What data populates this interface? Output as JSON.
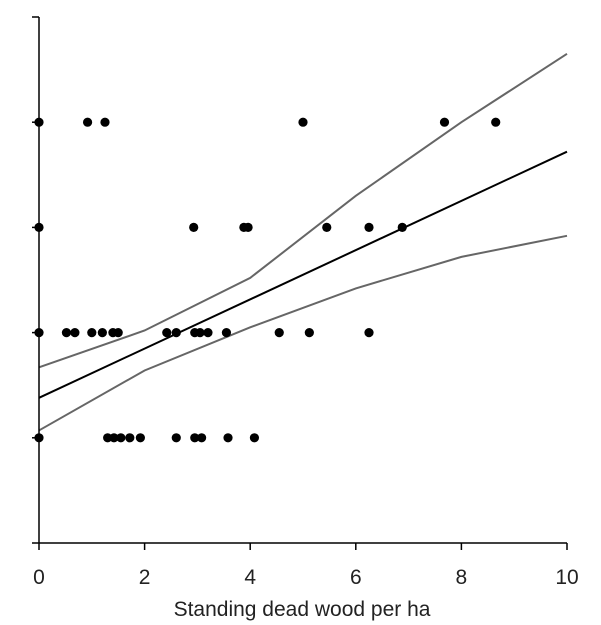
{
  "chart_data": {
    "type": "scatter",
    "title": "",
    "xlabel": "Standing dead wood per ha",
    "ylabel": "",
    "xlim": [
      0,
      10
    ],
    "ylim": [
      0,
      5
    ],
    "xticks": [
      0,
      2,
      4,
      6,
      8,
      10
    ],
    "xtick_labels": [
      "0",
      "2",
      "4",
      "6",
      "8",
      "10"
    ],
    "yticks": [
      0,
      1,
      2,
      3,
      4,
      5
    ],
    "ytick_labels": [
      "",
      "",
      "",
      "",
      "",
      ""
    ],
    "grid": false,
    "colors": {
      "points": "#000000",
      "fit_line": "#000000",
      "confidence_band": "#666666",
      "axes": "#000000"
    },
    "points": [
      {
        "x": 0.0,
        "y": 4
      },
      {
        "x": 0.92,
        "y": 4
      },
      {
        "x": 1.25,
        "y": 4
      },
      {
        "x": 5.0,
        "y": 4
      },
      {
        "x": 7.68,
        "y": 4
      },
      {
        "x": 8.65,
        "y": 4
      },
      {
        "x": 0.0,
        "y": 3
      },
      {
        "x": 2.93,
        "y": 3
      },
      {
        "x": 3.88,
        "y": 3
      },
      {
        "x": 3.96,
        "y": 3
      },
      {
        "x": 5.45,
        "y": 3
      },
      {
        "x": 6.25,
        "y": 3
      },
      {
        "x": 6.88,
        "y": 3
      },
      {
        "x": 0.0,
        "y": 2
      },
      {
        "x": 0.52,
        "y": 2
      },
      {
        "x": 0.68,
        "y": 2
      },
      {
        "x": 1.0,
        "y": 2
      },
      {
        "x": 1.2,
        "y": 2
      },
      {
        "x": 1.4,
        "y": 2
      },
      {
        "x": 1.5,
        "y": 2
      },
      {
        "x": 2.42,
        "y": 2
      },
      {
        "x": 2.6,
        "y": 2
      },
      {
        "x": 2.95,
        "y": 2
      },
      {
        "x": 3.05,
        "y": 2
      },
      {
        "x": 3.2,
        "y": 2
      },
      {
        "x": 3.55,
        "y": 2
      },
      {
        "x": 4.55,
        "y": 2
      },
      {
        "x": 5.12,
        "y": 2
      },
      {
        "x": 6.25,
        "y": 2
      },
      {
        "x": 0.0,
        "y": 1
      },
      {
        "x": 1.3,
        "y": 1
      },
      {
        "x": 1.42,
        "y": 1
      },
      {
        "x": 1.55,
        "y": 1
      },
      {
        "x": 1.72,
        "y": 1
      },
      {
        "x": 1.92,
        "y": 1
      },
      {
        "x": 2.6,
        "y": 1
      },
      {
        "x": 2.95,
        "y": 1
      },
      {
        "x": 3.08,
        "y": 1
      },
      {
        "x": 3.58,
        "y": 1
      },
      {
        "x": 4.08,
        "y": 1
      }
    ],
    "fit_line": [
      {
        "x": 0,
        "y": 1.38
      },
      {
        "x": 10,
        "y": 3.72
      }
    ],
    "upper_ci": [
      {
        "x": 0,
        "y": 1.67
      },
      {
        "x": 2,
        "y": 2.02
      },
      {
        "x": 4,
        "y": 2.52
      },
      {
        "x": 6,
        "y": 3.3
      },
      {
        "x": 8,
        "y": 4.0
      },
      {
        "x": 10,
        "y": 4.65
      }
    ],
    "lower_ci": [
      {
        "x": 0,
        "y": 1.07
      },
      {
        "x": 2,
        "y": 1.64
      },
      {
        "x": 4,
        "y": 2.05
      },
      {
        "x": 6,
        "y": 2.42
      },
      {
        "x": 8,
        "y": 2.72
      },
      {
        "x": 10,
        "y": 2.92
      }
    ]
  }
}
